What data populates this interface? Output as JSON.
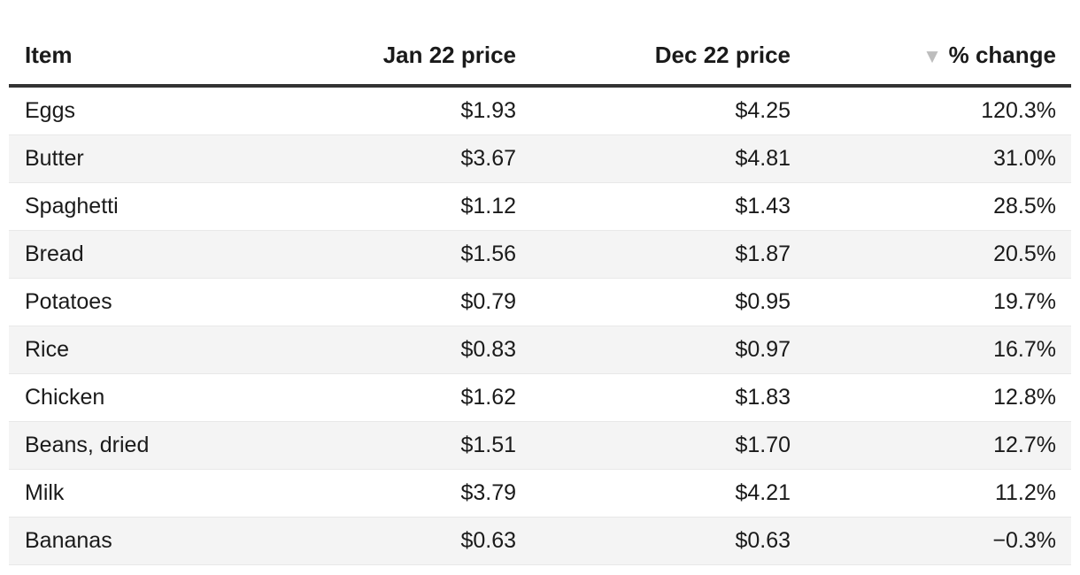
{
  "table": {
    "columns": [
      {
        "label": "Item"
      },
      {
        "label": "Jan 22 price"
      },
      {
        "label": "Dec 22 price"
      },
      {
        "label": "% change",
        "sort_icon": "triangle-down",
        "sort_glyph": "▼"
      }
    ],
    "row_keys": [
      "item",
      "jan_22_price",
      "dec_22_price",
      "pct_change"
    ],
    "rows": [
      {
        "item": "Eggs",
        "jan_22_price": "$1.93",
        "dec_22_price": "$4.25",
        "pct_change": "120.3%"
      },
      {
        "item": "Butter",
        "jan_22_price": "$3.67",
        "dec_22_price": "$4.81",
        "pct_change": "31.0%"
      },
      {
        "item": "Spaghetti",
        "jan_22_price": "$1.12",
        "dec_22_price": "$1.43",
        "pct_change": "28.5%"
      },
      {
        "item": "Bread",
        "jan_22_price": "$1.56",
        "dec_22_price": "$1.87",
        "pct_change": "20.5%"
      },
      {
        "item": "Potatoes",
        "jan_22_price": "$0.79",
        "dec_22_price": "$0.95",
        "pct_change": "19.7%"
      },
      {
        "item": "Rice",
        "jan_22_price": "$0.83",
        "dec_22_price": "$0.97",
        "pct_change": "16.7%"
      },
      {
        "item": "Chicken",
        "jan_22_price": "$1.62",
        "dec_22_price": "$1.83",
        "pct_change": "12.8%"
      },
      {
        "item": "Beans, dried",
        "jan_22_price": "$1.51",
        "dec_22_price": "$1.70",
        "pct_change": "12.7%"
      },
      {
        "item": "Milk",
        "jan_22_price": "$3.79",
        "dec_22_price": "$4.21",
        "pct_change": "11.2%"
      },
      {
        "item": "Bananas",
        "jan_22_price": "$0.63",
        "dec_22_price": "$0.63",
        "pct_change": "−0.3%"
      }
    ],
    "colors": {
      "text": "#1a1a1a",
      "header_rule": "#333333",
      "zebra_stripe": "#f4f4f4",
      "row_divider": "#e8e8e8",
      "sort_icon": "#bdbdbd"
    }
  },
  "chart_data": {
    "type": "table",
    "columns": [
      "Item",
      "Jan 22 price",
      "Dec 22 price",
      "% change"
    ],
    "rows": [
      [
        "Eggs",
        1.93,
        4.25,
        120.3
      ],
      [
        "Butter",
        3.67,
        4.81,
        31.0
      ],
      [
        "Spaghetti",
        1.12,
        1.43,
        28.5
      ],
      [
        "Bread",
        1.56,
        1.87,
        20.5
      ],
      [
        "Potatoes",
        0.79,
        0.95,
        19.7
      ],
      [
        "Rice",
        0.83,
        0.97,
        16.7
      ],
      [
        "Chicken",
        1.62,
        1.83,
        12.8
      ],
      [
        "Beans, dried",
        1.51,
        1.7,
        12.7
      ],
      [
        "Milk",
        3.79,
        4.21,
        11.2
      ],
      [
        "Bananas",
        0.63,
        0.63,
        -0.3
      ]
    ],
    "sort": {
      "column": "% change",
      "direction": "descending"
    },
    "layout_hints": {
      "zebra_striping": true,
      "numeric_columns_right_aligned": true
    }
  }
}
